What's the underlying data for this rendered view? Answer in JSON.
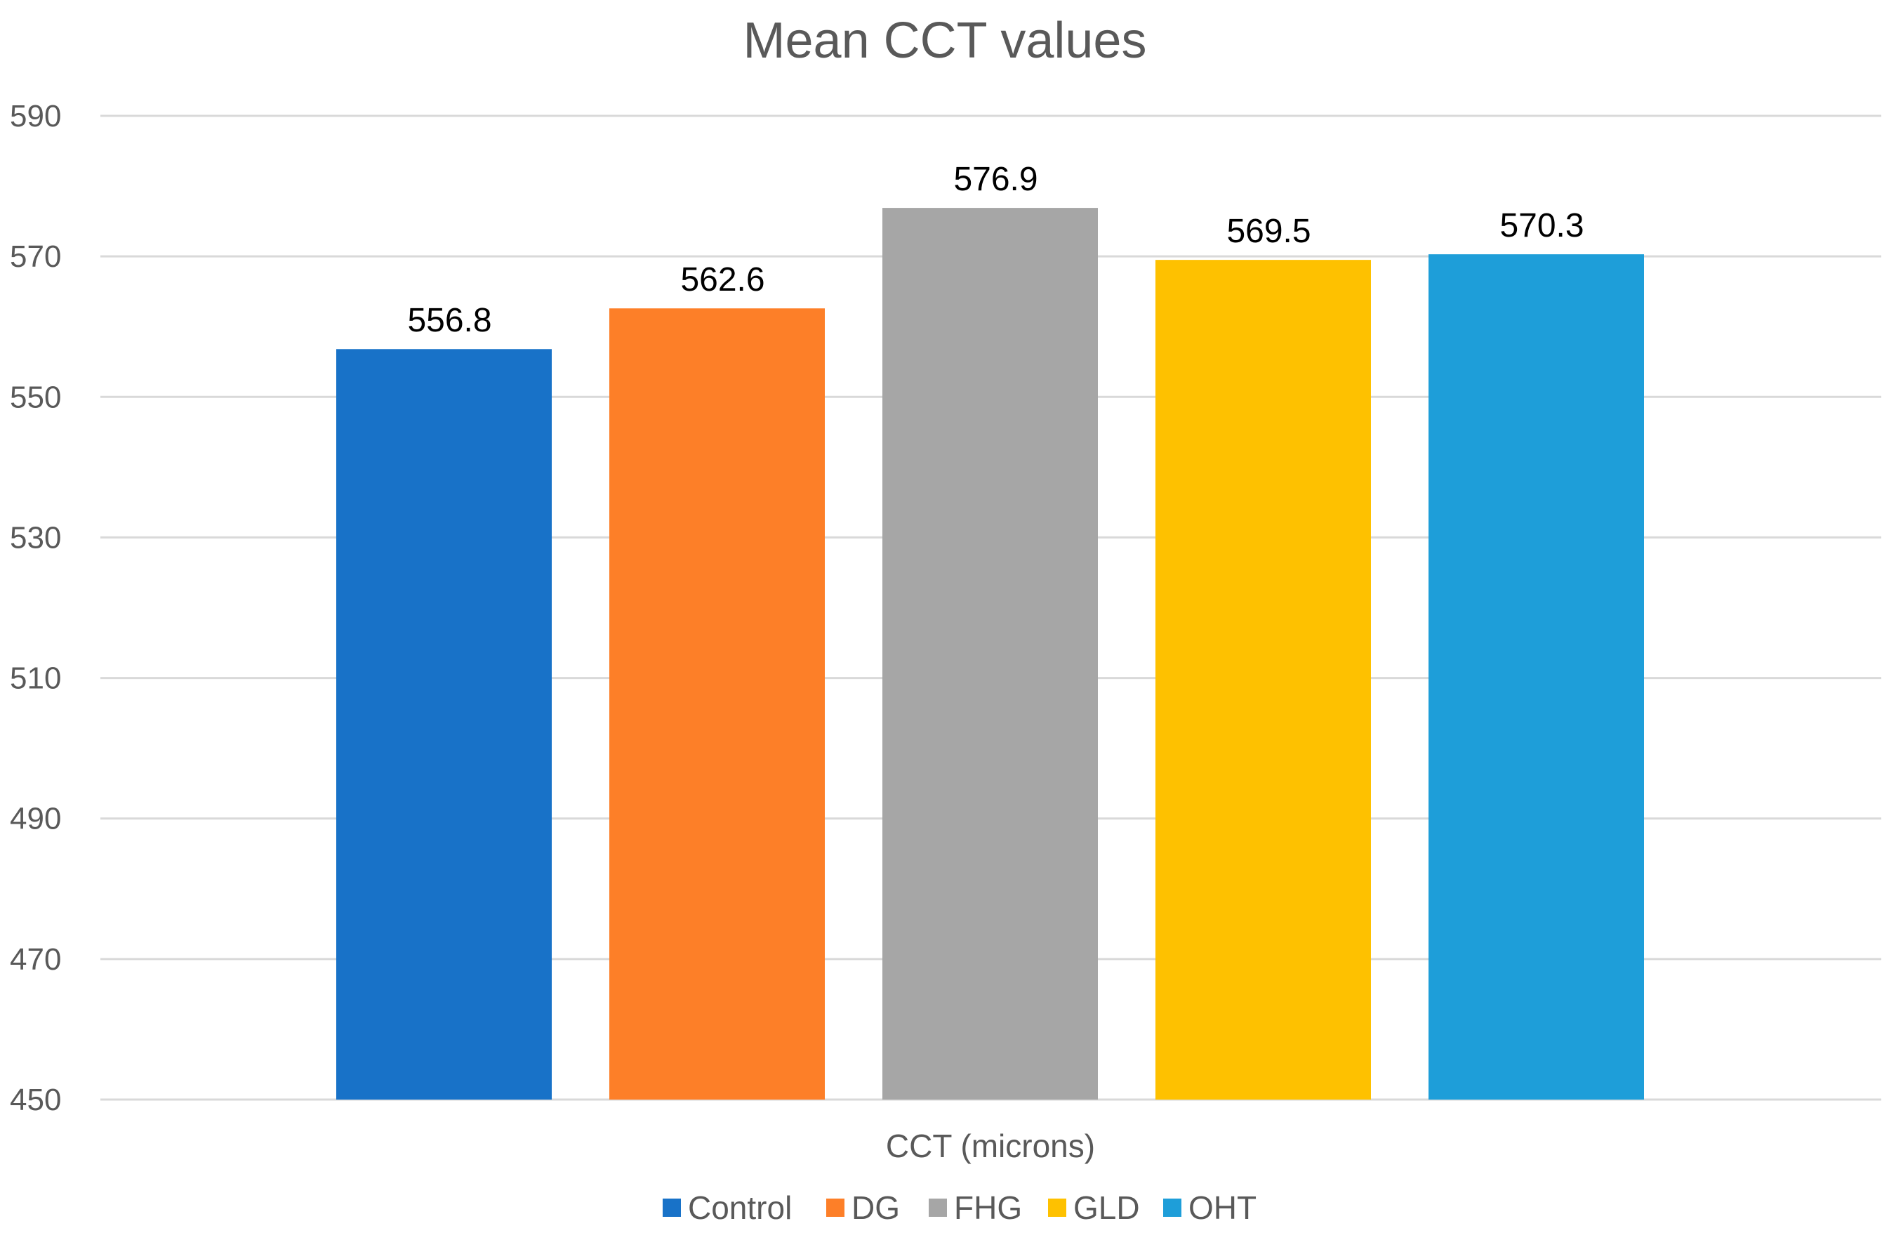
{
  "chart_data": {
    "type": "bar",
    "title": "Mean CCT values",
    "xlabel": "CCT (microns)",
    "ylabel": "",
    "ylim": [
      450,
      590
    ],
    "yticks": [
      450,
      470,
      490,
      510,
      530,
      550,
      570,
      590
    ],
    "grid": true,
    "legend_position": "bottom",
    "categories": [
      "CCT (microns)"
    ],
    "series": [
      {
        "name": "Control",
        "values": [
          556.8
        ],
        "label": "556.8",
        "color": "#1872c8"
      },
      {
        "name": "DG",
        "values": [
          562.6
        ],
        "label": "562.6",
        "color": "#fd7f28"
      },
      {
        "name": "FHG",
        "values": [
          576.9
        ],
        "label": "576.9",
        "color": "#a6a6a6"
      },
      {
        "name": "GLD",
        "values": [
          569.5
        ],
        "label": "569.5",
        "color": "#fec100"
      },
      {
        "name": "OHT",
        "values": [
          570.3
        ],
        "label": "570.3",
        "color": "#1e9ed9"
      }
    ]
  }
}
